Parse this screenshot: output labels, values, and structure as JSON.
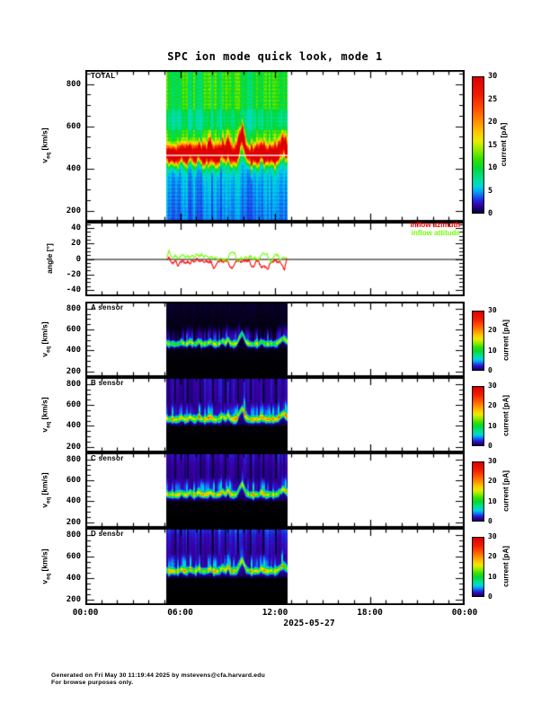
{
  "title": "SPC ion mode quick look, mode 1",
  "footer": {
    "line1": "Generated on Fri May 30 11:19:44 2025 by mstevens@cfa.harvard.edu",
    "line2": "For browse purposes only."
  },
  "axis_x": {
    "range_hours": [
      0,
      24
    ],
    "major_hours": [
      0,
      6,
      12,
      18,
      24
    ],
    "minor_step_hours": 1,
    "labels": [
      "00:00",
      "06:00",
      "12:00",
      "18:00",
      "00:00"
    ],
    "date": "2025-05-27"
  },
  "ylabel_velocity": {
    "pre": "v",
    "sub": "eq",
    "units": " [km/s]"
  },
  "ylabel_angle": "angle [°]",
  "colorbar_label": "current [pA]",
  "legend": [
    {
      "label": "inflow azimuth",
      "color": "#ff0000"
    },
    {
      "label": "inflow attitude",
      "color": "#70ff00"
    }
  ],
  "colormap_stops": [
    [
      0,
      "#000000"
    ],
    [
      1,
      "#16006e"
    ],
    [
      2,
      "#3a00a8"
    ],
    [
      3,
      "#1c2ae0"
    ],
    [
      4,
      "#1866ec"
    ],
    [
      5,
      "#00a8f8"
    ],
    [
      6,
      "#00d8d8"
    ],
    [
      8,
      "#00e088"
    ],
    [
      10,
      "#00d83c"
    ],
    [
      12,
      "#38e000"
    ],
    [
      14,
      "#94ec00"
    ],
    [
      16,
      "#ecec00"
    ],
    [
      18,
      "#ffc400"
    ],
    [
      20,
      "#ff9400"
    ],
    [
      23,
      "#ff5000"
    ],
    [
      26,
      "#f01c00"
    ],
    [
      30,
      "#dc0000"
    ]
  ],
  "band_center_kms": [
    [
      5.1,
      473
    ],
    [
      5.25,
      460
    ],
    [
      5.45,
      466
    ],
    [
      5.65,
      458
    ],
    [
      5.9,
      464
    ],
    [
      6.05,
      483
    ],
    [
      6.2,
      466
    ],
    [
      6.4,
      460
    ],
    [
      6.6,
      486
    ],
    [
      6.75,
      468
    ],
    [
      6.95,
      460
    ],
    [
      7.15,
      490
    ],
    [
      7.3,
      466
    ],
    [
      7.5,
      460
    ],
    [
      7.7,
      468
    ],
    [
      7.9,
      485
    ],
    [
      8.05,
      464
    ],
    [
      8.25,
      458
    ],
    [
      8.45,
      466
    ],
    [
      8.65,
      493
    ],
    [
      8.85,
      468
    ],
    [
      9.0,
      508
    ],
    [
      9.15,
      466
    ],
    [
      9.35,
      460
    ],
    [
      9.55,
      468
    ],
    [
      9.75,
      533
    ],
    [
      9.9,
      568
    ],
    [
      10.0,
      533
    ],
    [
      10.15,
      478
    ],
    [
      10.35,
      462
    ],
    [
      10.55,
      458
    ],
    [
      10.75,
      466
    ],
    [
      10.95,
      460
    ],
    [
      11.1,
      488
    ],
    [
      11.3,
      466
    ],
    [
      11.5,
      460
    ],
    [
      11.7,
      468
    ],
    [
      11.9,
      462
    ],
    [
      12.1,
      466
    ],
    [
      12.3,
      493
    ],
    [
      12.5,
      518
    ],
    [
      12.65,
      498
    ],
    [
      12.8,
      478
    ]
  ],
  "chart_data": [
    {
      "id": "total",
      "type": "spectrogram",
      "label": "TOTAL",
      "ylim": [
        147,
        867
      ],
      "yticks": [
        200,
        400,
        600,
        800
      ],
      "ytick_minor_step": 50,
      "data_trange": [
        5.1,
        12.8
      ],
      "colorbar": {
        "max": 30,
        "ticks": [
          0,
          5,
          10,
          15,
          20,
          25,
          30
        ]
      },
      "profile": [
        [
          147,
          4.0
        ],
        [
          250,
          4.5
        ],
        [
          350,
          5.0
        ],
        [
          410,
          5.8
        ],
        [
          435,
          7.5
        ],
        [
          455,
          9.5
        ],
        [
          530,
          10.5
        ],
        [
          575,
          10.3
        ],
        [
          595,
          8.3
        ],
        [
          640,
          8.0
        ],
        [
          670,
          8.5
        ],
        [
          690,
          10.2
        ],
        [
          867,
          10.4
        ]
      ],
      "band": {
        "amp": 26,
        "sigma": 27
      },
      "white_line_v": 462,
      "seed": 7
    },
    {
      "id": "angles",
      "type": "line",
      "ylim": [
        -48,
        48
      ],
      "yticks": [
        -40,
        -20,
        0,
        20,
        40
      ],
      "ytick_minor_step": 5,
      "zero_line": 0,
      "series": [
        {
          "name": "inflow azimuth",
          "color": "#ff0000",
          "points": [
            [
              5.15,
              -1
            ],
            [
              5.3,
              2
            ],
            [
              5.4,
              -3
            ],
            [
              5.55,
              -6
            ],
            [
              5.7,
              -2
            ],
            [
              5.85,
              -9
            ],
            [
              6.0,
              -4
            ],
            [
              6.15,
              -2
            ],
            [
              6.3,
              -5
            ],
            [
              6.45,
              -3
            ],
            [
              6.6,
              -6
            ],
            [
              6.75,
              -2
            ],
            [
              6.9,
              -4
            ],
            [
              7.05,
              1
            ],
            [
              7.2,
              -3
            ],
            [
              7.35,
              -2
            ],
            [
              7.5,
              -4
            ],
            [
              7.65,
              -2
            ],
            [
              7.8,
              -5
            ],
            [
              7.95,
              -3
            ],
            [
              8.1,
              -12
            ],
            [
              8.25,
              -8
            ],
            [
              8.4,
              -3
            ],
            [
              8.55,
              -2
            ],
            [
              8.7,
              -4
            ],
            [
              8.85,
              -2
            ],
            [
              9.0,
              -3
            ],
            [
              9.15,
              -10
            ],
            [
              9.3,
              -12
            ],
            [
              9.45,
              -6
            ],
            [
              9.6,
              -3
            ],
            [
              9.75,
              -2
            ],
            [
              9.9,
              -4
            ],
            [
              10.05,
              -2
            ],
            [
              10.2,
              -3
            ],
            [
              10.35,
              -1
            ],
            [
              10.5,
              -9
            ],
            [
              10.65,
              -10
            ],
            [
              10.8,
              -3
            ],
            [
              10.95,
              -2
            ],
            [
              11.1,
              -10
            ],
            [
              11.4,
              -10
            ],
            [
              11.55,
              -13
            ],
            [
              11.7,
              -5
            ],
            [
              11.85,
              -3
            ],
            [
              12.0,
              -2
            ],
            [
              12.15,
              -4
            ],
            [
              12.3,
              -3
            ],
            [
              12.45,
              -8
            ],
            [
              12.6,
              -14
            ],
            [
              12.7,
              -4
            ],
            [
              12.75,
              1
            ]
          ]
        },
        {
          "name": "inflow attitude",
          "color": "#70ff00",
          "points": [
            [
              5.15,
              2
            ],
            [
              5.3,
              11
            ],
            [
              5.4,
              4
            ],
            [
              5.55,
              2
            ],
            [
              5.7,
              5
            ],
            [
              5.85,
              1
            ],
            [
              6.0,
              3
            ],
            [
              6.15,
              6
            ],
            [
              6.3,
              2
            ],
            [
              6.45,
              4
            ],
            [
              6.6,
              1
            ],
            [
              6.75,
              5
            ],
            [
              6.9,
              2
            ],
            [
              7.05,
              6
            ],
            [
              7.2,
              3
            ],
            [
              7.35,
              7
            ],
            [
              7.5,
              2
            ],
            [
              7.65,
              4
            ],
            [
              7.8,
              1
            ],
            [
              7.95,
              3
            ],
            [
              8.1,
              0
            ],
            [
              8.25,
              2
            ],
            [
              8.4,
              -1
            ],
            [
              8.55,
              1
            ],
            [
              8.7,
              -2
            ],
            [
              8.85,
              0
            ],
            [
              9.0,
              -3
            ],
            [
              9.1,
              6
            ],
            [
              9.2,
              8
            ],
            [
              9.45,
              8
            ],
            [
              9.55,
              1
            ],
            [
              9.7,
              -4
            ],
            [
              9.85,
              2
            ],
            [
              10.0,
              0
            ],
            [
              10.15,
              3
            ],
            [
              10.3,
              1
            ],
            [
              10.45,
              4
            ],
            [
              10.6,
              0
            ],
            [
              10.75,
              2
            ],
            [
              10.9,
              -1
            ],
            [
              11.05,
              1
            ],
            [
              11.2,
              7
            ],
            [
              11.5,
              7
            ],
            [
              11.6,
              0
            ],
            [
              11.75,
              -5
            ],
            [
              11.9,
              3
            ],
            [
              12.05,
              6
            ],
            [
              12.2,
              4
            ],
            [
              12.35,
              -2
            ],
            [
              12.5,
              2
            ],
            [
              12.65,
              1
            ],
            [
              12.75,
              2
            ]
          ]
        }
      ]
    },
    {
      "id": "A",
      "type": "spectrogram",
      "label": "A sensor",
      "ylim": [
        147,
        867
      ],
      "yticks": [
        200,
        400,
        600,
        800
      ],
      "ytick_minor_step": 50,
      "data_trange": [
        5.1,
        12.8
      ],
      "colorbar": {
        "max": 30,
        "ticks": [
          0,
          10,
          20,
          30
        ]
      },
      "profile": [
        [
          147,
          0
        ],
        [
          400,
          0.1
        ],
        [
          430,
          0.4
        ],
        [
          600,
          0.1
        ],
        [
          700,
          0.25
        ],
        [
          867,
          0.4
        ]
      ],
      "band": {
        "amp": 12,
        "sigma": 15
      },
      "spike": 4,
      "seed": 11
    },
    {
      "id": "B",
      "type": "spectrogram",
      "label": "B sensor",
      "ylim": [
        147,
        867
      ],
      "yticks": [
        200,
        400,
        600,
        800
      ],
      "ytick_minor_step": 50,
      "data_trange": [
        5.1,
        12.8
      ],
      "colorbar": {
        "max": 30,
        "ticks": [
          0,
          10,
          20,
          30
        ]
      },
      "profile": [
        [
          147,
          0
        ],
        [
          390,
          0.05
        ],
        [
          425,
          0.9
        ],
        [
          470,
          1.4
        ],
        [
          540,
          1.8
        ],
        [
          600,
          1.5
        ],
        [
          650,
          1.7
        ],
        [
          750,
          1.9
        ],
        [
          867,
          2.0
        ]
      ],
      "band": {
        "amp": 15,
        "sigma": 17
      },
      "spike": 5,
      "top_stripes": true,
      "seed": 13
    },
    {
      "id": "C",
      "type": "spectrogram",
      "label": "C sensor",
      "ylim": [
        147,
        867
      ],
      "yticks": [
        200,
        400,
        600,
        800
      ],
      "ytick_minor_step": 50,
      "data_trange": [
        5.1,
        12.8
      ],
      "colorbar": {
        "max": 30,
        "ticks": [
          0,
          10,
          20,
          30
        ]
      },
      "profile": [
        [
          147,
          0
        ],
        [
          390,
          0.05
        ],
        [
          425,
          0.9
        ],
        [
          470,
          1.4
        ],
        [
          540,
          1.7
        ],
        [
          600,
          1.4
        ],
        [
          650,
          1.6
        ],
        [
          750,
          1.8
        ],
        [
          867,
          2.4
        ]
      ],
      "band": {
        "amp": 14,
        "sigma": 16
      },
      "spike": 5,
      "top_stripes": true,
      "seed": 17
    },
    {
      "id": "D",
      "type": "spectrogram",
      "label": "D sensor",
      "ylim": [
        147,
        867
      ],
      "yticks": [
        200,
        400,
        600,
        800
      ],
      "ytick_minor_step": 50,
      "data_trange": [
        5.1,
        12.8
      ],
      "colorbar": {
        "max": 30,
        "ticks": [
          0,
          10,
          20,
          30
        ]
      },
      "profile": [
        [
          147,
          0
        ],
        [
          390,
          0.05
        ],
        [
          425,
          1.0
        ],
        [
          470,
          1.5
        ],
        [
          540,
          1.8
        ],
        [
          600,
          1.7
        ],
        [
          700,
          2.0
        ],
        [
          800,
          2.4
        ],
        [
          850,
          3.0
        ],
        [
          867,
          3.4
        ]
      ],
      "band": {
        "amp": 14,
        "sigma": 16
      },
      "spike": 5,
      "top_stripes": true,
      "seed": 19
    }
  ]
}
